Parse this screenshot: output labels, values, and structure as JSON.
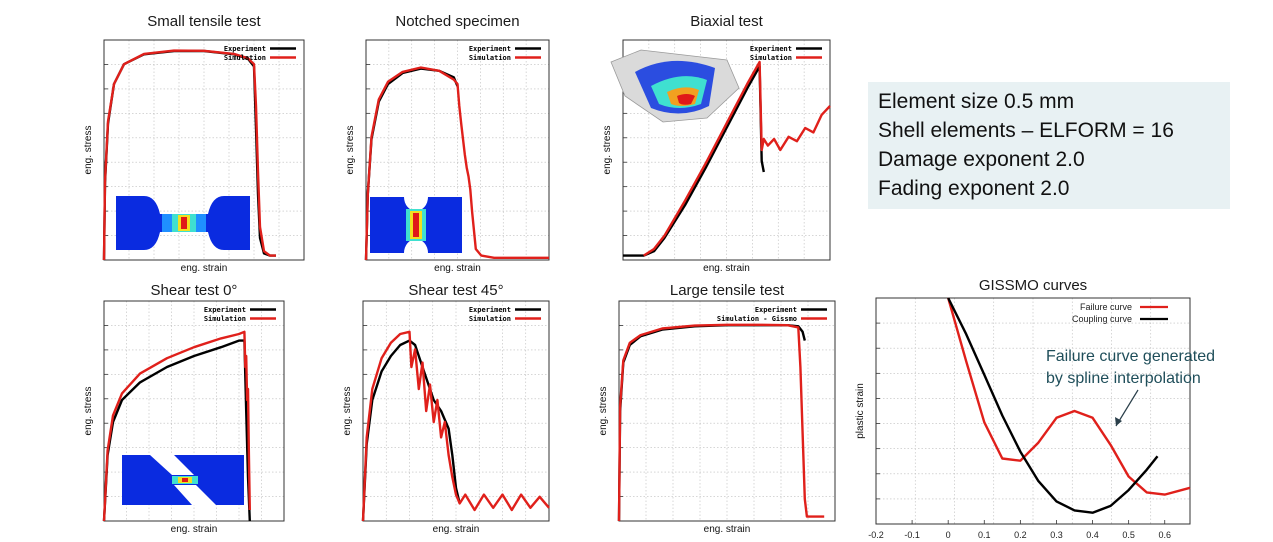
{
  "info_box": {
    "lines": [
      "Element size 0.5 mm",
      "Shell elements – ELFORM = 16",
      "Damage exponent 2.0",
      "Fading exponent 2.0"
    ]
  },
  "colors": {
    "experiment": "#000000",
    "simulation": "#e0201b",
    "box_bg": "#e8f1f3",
    "annotation": "#1f4e5a"
  },
  "chart_data": [
    {
      "id": "small-tensile",
      "type": "line",
      "title": "Small tensile test",
      "xlabel": "eng. strain",
      "ylabel": "eng. stress",
      "xlim": [
        0,
        1
      ],
      "ylim": [
        0,
        1
      ],
      "grid": true,
      "legend": {
        "position": "top-right",
        "entries": [
          "Experiment",
          "Simulation"
        ]
      },
      "specimen_inset": "dogbone",
      "series": [
        {
          "name": "Experiment",
          "role": "experiment",
          "x": [
            0,
            0.005,
            0.02,
            0.05,
            0.1,
            0.2,
            0.35,
            0.5,
            0.65,
            0.72,
            0.75,
            0.76,
            0.77,
            0.78,
            0.8,
            0.83,
            0.86
          ],
          "y": [
            0,
            0.35,
            0.62,
            0.8,
            0.89,
            0.935,
            0.95,
            0.95,
            0.935,
            0.915,
            0.88,
            0.6,
            0.3,
            0.1,
            0.03,
            0.02,
            0.02
          ]
        },
        {
          "name": "Simulation",
          "role": "simulation",
          "x": [
            0,
            0.005,
            0.02,
            0.05,
            0.1,
            0.2,
            0.35,
            0.5,
            0.65,
            0.72,
            0.75,
            0.76,
            0.77,
            0.78,
            0.8,
            0.83,
            0.86
          ],
          "y": [
            0,
            0.36,
            0.63,
            0.8,
            0.89,
            0.937,
            0.952,
            0.951,
            0.937,
            0.917,
            0.89,
            0.7,
            0.4,
            0.15,
            0.04,
            0.02,
            0.02
          ]
        }
      ]
    },
    {
      "id": "notched",
      "type": "line",
      "title": "Notched specimen",
      "xlabel": "eng. strain",
      "ylabel": "eng. stress",
      "xlim": [
        0,
        1
      ],
      "ylim": [
        0,
        1
      ],
      "grid": true,
      "legend": {
        "position": "top-right",
        "entries": [
          "Experiment",
          "Simulation"
        ]
      },
      "specimen_inset": "notched",
      "series": [
        {
          "name": "Experiment",
          "role": "experiment",
          "x": [
            0,
            0.01,
            0.03,
            0.07,
            0.12,
            0.2,
            0.3,
            0.4,
            0.48,
            0.5
          ],
          "y": [
            0,
            0.3,
            0.55,
            0.72,
            0.8,
            0.85,
            0.87,
            0.86,
            0.83,
            0.79
          ]
        },
        {
          "name": "Simulation",
          "role": "simulation",
          "x": [
            0,
            0.01,
            0.03,
            0.07,
            0.12,
            0.2,
            0.3,
            0.4,
            0.48,
            0.5,
            0.51,
            0.52,
            0.53,
            0.54,
            0.55,
            0.56,
            0.57,
            0.58,
            0.6,
            0.63,
            0.7,
            0.8,
            1.0
          ],
          "y": [
            0,
            0.3,
            0.56,
            0.73,
            0.81,
            0.855,
            0.875,
            0.86,
            0.82,
            0.8,
            0.7,
            0.62,
            0.55,
            0.48,
            0.42,
            0.38,
            0.32,
            0.22,
            0.05,
            0.02,
            0.01,
            0.01,
            0.01
          ]
        }
      ]
    },
    {
      "id": "biaxial",
      "type": "line",
      "title": "Biaxial test",
      "xlabel": "eng. strain",
      "ylabel": "eng. stress",
      "xlim": [
        0,
        1
      ],
      "ylim": [
        0,
        1
      ],
      "grid": true,
      "legend": {
        "position": "top-right",
        "entries": [
          "Experiment",
          "Simulation"
        ]
      },
      "specimen_inset": "dome",
      "series": [
        {
          "name": "Experiment",
          "role": "experiment",
          "x": [
            0,
            0.1,
            0.15,
            0.2,
            0.3,
            0.4,
            0.5,
            0.6,
            0.66,
            0.67,
            0.68
          ],
          "y": [
            0.02,
            0.02,
            0.04,
            0.1,
            0.25,
            0.42,
            0.6,
            0.78,
            0.88,
            0.45,
            0.4
          ]
        },
        {
          "name": "Simulation",
          "role": "simulation",
          "x": [
            0.1,
            0.15,
            0.2,
            0.3,
            0.4,
            0.5,
            0.6,
            0.66,
            0.67,
            0.68,
            0.7,
            0.73,
            0.76,
            0.8,
            0.84,
            0.88,
            0.92,
            0.96,
            1.0
          ],
          "y": [
            0.02,
            0.05,
            0.11,
            0.27,
            0.44,
            0.62,
            0.8,
            0.9,
            0.5,
            0.55,
            0.52,
            0.55,
            0.5,
            0.56,
            0.54,
            0.6,
            0.58,
            0.66,
            0.7
          ]
        }
      ]
    },
    {
      "id": "shear0",
      "type": "line",
      "title": "Shear test 0°",
      "xlabel": "eng. strain",
      "ylabel": "eng. stress",
      "xlim": [
        0,
        1
      ],
      "ylim": [
        0,
        1
      ],
      "grid": true,
      "legend": {
        "position": "top-right",
        "entries": [
          "Experiment",
          "Simulation"
        ]
      },
      "specimen_inset": "shear",
      "series": [
        {
          "name": "Experiment",
          "role": "experiment",
          "x": [
            0,
            0.02,
            0.05,
            0.1,
            0.2,
            0.35,
            0.5,
            0.65,
            0.75,
            0.78,
            0.79,
            0.8,
            0.81
          ],
          "y": [
            0,
            0.3,
            0.45,
            0.55,
            0.63,
            0.7,
            0.75,
            0.79,
            0.82,
            0.82,
            0.5,
            0.2,
            0.0
          ]
        },
        {
          "name": "Simulation",
          "role": "simulation",
          "x": [
            0,
            0.02,
            0.05,
            0.1,
            0.2,
            0.35,
            0.5,
            0.65,
            0.75,
            0.78,
            0.785,
            0.79,
            0.795,
            0.8,
            0.805,
            0.81
          ],
          "y": [
            0,
            0.32,
            0.48,
            0.58,
            0.67,
            0.74,
            0.79,
            0.83,
            0.85,
            0.86,
            0.7,
            0.75,
            0.55,
            0.6,
            0.3,
            0.05
          ]
        }
      ]
    },
    {
      "id": "shear45",
      "type": "line",
      "title": "Shear test 45°",
      "xlabel": "eng. strain",
      "ylabel": "eng. stress",
      "xlim": [
        0,
        1
      ],
      "ylim": [
        0,
        1
      ],
      "grid": true,
      "legend": {
        "position": "top-right",
        "entries": [
          "Experiment",
          "Simulation"
        ]
      },
      "series": [
        {
          "name": "Experiment",
          "role": "experiment",
          "x": [
            0,
            0.02,
            0.05,
            0.1,
            0.15,
            0.2,
            0.25,
            0.28,
            0.32,
            0.38,
            0.42,
            0.46,
            0.48,
            0.5,
            0.52
          ],
          "y": [
            0,
            0.35,
            0.55,
            0.68,
            0.75,
            0.8,
            0.82,
            0.8,
            0.7,
            0.55,
            0.5,
            0.42,
            0.3,
            0.15,
            0.08
          ]
        },
        {
          "name": "Simulation",
          "role": "simulation",
          "x": [
            0,
            0.02,
            0.05,
            0.1,
            0.15,
            0.2,
            0.25,
            0.26,
            0.28,
            0.3,
            0.32,
            0.34,
            0.36,
            0.38,
            0.4,
            0.42,
            0.44,
            0.46,
            0.48,
            0.5,
            0.52,
            0.55,
            0.6,
            0.65,
            0.7,
            0.75,
            0.8,
            0.85,
            0.9,
            0.95,
            1.0
          ],
          "y": [
            0,
            0.38,
            0.6,
            0.74,
            0.81,
            0.85,
            0.86,
            0.7,
            0.78,
            0.6,
            0.72,
            0.5,
            0.62,
            0.45,
            0.55,
            0.38,
            0.45,
            0.3,
            0.2,
            0.12,
            0.08,
            0.12,
            0.05,
            0.12,
            0.06,
            0.12,
            0.05,
            0.12,
            0.06,
            0.11,
            0.06
          ]
        }
      ]
    },
    {
      "id": "large-tensile",
      "type": "line",
      "title": "Large tensile test",
      "xlabel": "eng. strain",
      "ylabel": "eng. stress",
      "xlim": [
        0,
        1
      ],
      "ylim": [
        0,
        1
      ],
      "grid": true,
      "legend": {
        "position": "top-right",
        "entries": [
          "Experiment",
          "Simulation - Gissmo"
        ]
      },
      "series": [
        {
          "name": "Experiment",
          "role": "experiment",
          "x": [
            0,
            0.005,
            0.02,
            0.05,
            0.1,
            0.2,
            0.35,
            0.5,
            0.65,
            0.78,
            0.83,
            0.85,
            0.86
          ],
          "y": [
            0,
            0.5,
            0.72,
            0.8,
            0.84,
            0.87,
            0.885,
            0.89,
            0.89,
            0.89,
            0.885,
            0.86,
            0.82
          ]
        },
        {
          "name": "Simulation - Gissmo",
          "role": "simulation",
          "x": [
            0,
            0.005,
            0.02,
            0.05,
            0.1,
            0.2,
            0.35,
            0.5,
            0.65,
            0.78,
            0.83,
            0.84,
            0.85,
            0.86,
            0.87,
            0.9,
            0.95
          ],
          "y": [
            0,
            0.52,
            0.73,
            0.81,
            0.845,
            0.875,
            0.888,
            0.892,
            0.892,
            0.89,
            0.88,
            0.7,
            0.4,
            0.1,
            0.02,
            0.02,
            0.02
          ]
        }
      ]
    },
    {
      "id": "gissmo",
      "type": "line",
      "title": "GISSMO curves",
      "xlabel": "",
      "ylabel": "plastic strain",
      "xlim": [
        -0.2,
        0.67
      ],
      "ylim": [
        0,
        1
      ],
      "xticks": [
        "-0.2",
        "-0.1",
        "0",
        "0.1",
        "0.2",
        "0.3",
        "0.4",
        "0.5",
        "0.6"
      ],
      "xtick_values": [
        -0.2,
        -0.1,
        0,
        0.1,
        0.2,
        0.3,
        0.4,
        0.5,
        0.6
      ],
      "grid": true,
      "legend": {
        "position": "top-right",
        "entries": [
          "Failure curve",
          "Coupling curve"
        ]
      },
      "annotation": "Failure curve generated by spline interpolation",
      "series": [
        {
          "name": "Failure curve",
          "role": "simulation",
          "x": [
            0,
            0.05,
            0.1,
            0.15,
            0.2,
            0.25,
            0.3,
            0.35,
            0.4,
            0.45,
            0.5,
            0.55,
            0.6,
            0.67
          ],
          "y": [
            1.0,
            0.72,
            0.45,
            0.29,
            0.28,
            0.36,
            0.47,
            0.5,
            0.47,
            0.35,
            0.21,
            0.14,
            0.13,
            0.16
          ]
        },
        {
          "name": "Coupling curve",
          "role": "experiment",
          "x": [
            0,
            0.05,
            0.1,
            0.15,
            0.2,
            0.25,
            0.3,
            0.35,
            0.4,
            0.45,
            0.5,
            0.55,
            0.58
          ],
          "y": [
            1.0,
            0.84,
            0.66,
            0.48,
            0.32,
            0.19,
            0.1,
            0.06,
            0.05,
            0.08,
            0.15,
            0.24,
            0.3
          ]
        }
      ]
    }
  ]
}
